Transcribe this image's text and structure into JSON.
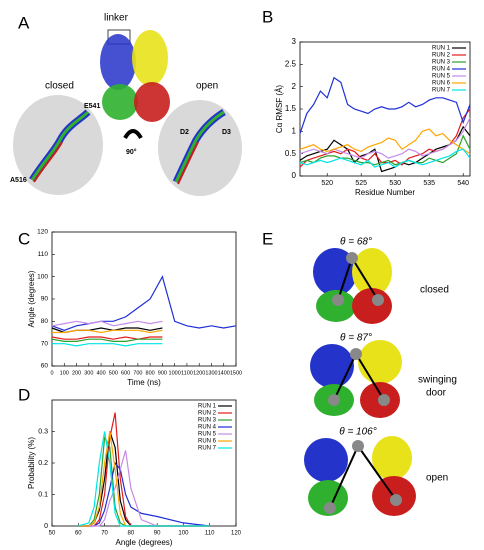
{
  "panels": {
    "a": "A",
    "b": "B",
    "c": "C",
    "d": "D",
    "e": "E"
  },
  "panel_a": {
    "linker": "linker",
    "closed": "closed",
    "open": "open",
    "e541": "E541",
    "a516": "A516",
    "rotation": "90°",
    "d2": "D2",
    "d3": "D3"
  },
  "panel_e": {
    "states": [
      {
        "angle": "θ = 68°",
        "label": [
          "closed"
        ]
      },
      {
        "angle": "θ = 87°",
        "label": [
          "swinging",
          "door"
        ]
      },
      {
        "angle": "θ = 106°",
        "label": [
          "open"
        ]
      }
    ]
  },
  "chart_data": [
    {
      "type": "line",
      "xlabel": "Residue Number",
      "ylabel": "Cα RMSF (Å)",
      "legend": "upper right",
      "x": [
        516,
        517,
        518,
        519,
        520,
        521,
        522,
        523,
        524,
        525,
        526,
        527,
        528,
        529,
        530,
        531,
        532,
        533,
        534,
        535,
        536,
        537,
        538,
        539,
        540,
        541
      ],
      "xlim": [
        516,
        541
      ],
      "xticks": [
        520,
        525,
        530,
        535,
        540
      ],
      "ylim": [
        0,
        3
      ],
      "yticks": [
        0,
        0.5,
        1,
        1.5,
        2,
        2.5,
        3
      ],
      "series": [
        {
          "name": "RUN 1",
          "color": "#000000",
          "values": [
            0.35,
            0.45,
            0.5,
            0.55,
            0.6,
            0.8,
            0.7,
            0.6,
            0.3,
            0.45,
            0.5,
            0.6,
            0.1,
            0.15,
            0.2,
            0.3,
            0.25,
            0.3,
            0.4,
            0.5,
            0.6,
            0.65,
            0.7,
            0.8,
            1.1,
            0.9
          ]
        },
        {
          "name": "RUN 2",
          "color": "#e41a1c",
          "values": [
            0.2,
            0.35,
            0.4,
            0.45,
            0.5,
            0.55,
            0.5,
            0.6,
            0.55,
            0.4,
            0.35,
            0.5,
            0.3,
            0.3,
            0.35,
            0.25,
            0.4,
            0.45,
            0.5,
            0.6,
            0.55,
            0.6,
            0.7,
            0.9,
            1.3,
            1.5
          ]
        },
        {
          "name": "RUN 3",
          "color": "#2ca02c",
          "values": [
            0.3,
            0.35,
            0.3,
            0.4,
            0.45,
            0.45,
            0.4,
            0.4,
            0.35,
            0.3,
            0.3,
            0.25,
            0.3,
            0.35,
            0.25,
            0.3,
            0.35,
            0.3,
            0.3,
            0.4,
            0.35,
            0.3,
            0.4,
            0.5,
            0.9,
            0.6
          ]
        },
        {
          "name": "RUN 4",
          "color": "#1f2fd6",
          "values": [
            0.95,
            1.4,
            1.6,
            1.9,
            1.75,
            2.2,
            2.1,
            1.6,
            1.5,
            1.45,
            1.4,
            1.5,
            1.55,
            1.5,
            1.5,
            1.55,
            1.65,
            1.55,
            1.6,
            1.7,
            1.75,
            1.75,
            1.7,
            1.65,
            1.2,
            1.6
          ]
        },
        {
          "name": "RUN 5",
          "color": "#c58be6",
          "values": [
            0.5,
            0.55,
            0.6,
            0.55,
            0.5,
            0.6,
            0.55,
            0.5,
            0.45,
            0.4,
            0.5,
            0.55,
            0.5,
            0.4,
            0.45,
            0.5,
            0.6,
            0.55,
            0.45,
            0.5,
            0.55,
            0.6,
            0.7,
            0.8,
            1.0,
            1.3
          ]
        },
        {
          "name": "RUN 6",
          "color": "#ffa500",
          "values": [
            0.6,
            0.65,
            0.7,
            0.6,
            0.55,
            0.6,
            0.65,
            0.7,
            0.6,
            0.55,
            0.65,
            0.7,
            0.75,
            0.85,
            0.8,
            0.6,
            0.7,
            0.8,
            1.0,
            1.05,
            0.9,
            0.95,
            0.8,
            0.7,
            0.6,
            0.5
          ]
        },
        {
          "name": "RUN 7",
          "color": "#00e5e5",
          "values": [
            0.3,
            0.25,
            0.3,
            0.35,
            0.3,
            0.35,
            0.4,
            0.35,
            0.3,
            0.25,
            0.35,
            0.2,
            0.25,
            0.3,
            0.2,
            0.3,
            0.35,
            0.3,
            0.25,
            0.3,
            0.35,
            0.4,
            0.45,
            0.55,
            0.6,
            0.4
          ]
        }
      ]
    },
    {
      "type": "line",
      "xlabel": "Time (ns)",
      "ylabel": "Angle (degrees)",
      "x": [
        0,
        100,
        200,
        300,
        400,
        500,
        600,
        700,
        800,
        900,
        1000,
        1100,
        1200,
        1300,
        1400,
        1500
      ],
      "xlim": [
        0,
        1500
      ],
      "xticks": [
        0,
        100,
        200,
        300,
        400,
        500,
        600,
        700,
        800,
        900,
        1000,
        1100,
        1200,
        1300,
        1400,
        1500
      ],
      "ylim": [
        60,
        120
      ],
      "yticks": [
        60,
        70,
        80,
        90,
        100,
        110,
        120
      ],
      "series": [
        {
          "name": "RUN 4",
          "color": "#1f2fd6",
          "values": [
            78,
            76,
            78,
            79,
            80,
            80,
            82,
            86,
            90,
            100,
            80,
            78,
            77,
            78,
            77,
            78
          ]
        },
        {
          "name": "RUN 5",
          "color": "#c58be6",
          "values": [
            78,
            79,
            80,
            79,
            80,
            78,
            79,
            80,
            79,
            80,
            null,
            null,
            null,
            null,
            null,
            null
          ]
        },
        {
          "name": "RUN 1",
          "color": "#000000",
          "values": [
            77,
            75,
            76,
            76,
            77,
            76,
            77,
            77,
            76,
            77,
            null,
            null,
            null,
            null,
            null,
            null
          ]
        },
        {
          "name": "RUN 6",
          "color": "#ffa500",
          "values": [
            75,
            75,
            76,
            76,
            75,
            76,
            76,
            76,
            75,
            76,
            null,
            null,
            null,
            null,
            null,
            null
          ]
        },
        {
          "name": "RUN 2",
          "color": "#e41a1c",
          "values": [
            73,
            72,
            72,
            73,
            73,
            72,
            73,
            72,
            73,
            73,
            null,
            null,
            null,
            null,
            null,
            null
          ]
        },
        {
          "name": "RUN 3",
          "color": "#2ca02c",
          "values": [
            72,
            71,
            71,
            72,
            72,
            71,
            71,
            72,
            72,
            72,
            null,
            null,
            null,
            null,
            null,
            null
          ]
        },
        {
          "name": "RUN 7",
          "color": "#00e5e5",
          "values": [
            70,
            70,
            69,
            70,
            70,
            70,
            69,
            70,
            70,
            70,
            null,
            null,
            null,
            null,
            null,
            null
          ]
        }
      ]
    },
    {
      "type": "line",
      "xlabel": "Angle (degrees)",
      "ylabel": "Probability (%)",
      "legend": "upper right",
      "x": [
        60,
        64,
        66,
        68,
        70,
        72,
        74,
        76,
        78,
        80,
        84,
        90,
        100,
        110
      ],
      "xlim": [
        50,
        120
      ],
      "xticks": [
        50,
        60,
        70,
        80,
        90,
        100,
        110,
        120
      ],
      "ylim": [
        0,
        0.4
      ],
      "yticks": [
        0,
        0.1,
        0.2,
        0.3
      ],
      "series": [
        {
          "name": "RUN 1",
          "color": "#000000",
          "values": [
            0,
            0,
            0.01,
            0.05,
            0.15,
            0.3,
            0.25,
            0.08,
            0.02,
            0,
            0,
            0,
            0,
            0
          ]
        },
        {
          "name": "RUN 2",
          "color": "#e41a1c",
          "values": [
            0,
            0,
            0,
            0.02,
            0.1,
            0.28,
            0.36,
            0.15,
            0.03,
            0,
            0,
            0,
            0,
            0
          ]
        },
        {
          "name": "RUN 3",
          "color": "#2ca02c",
          "values": [
            0,
            0,
            0.02,
            0.1,
            0.28,
            0.25,
            0.06,
            0.01,
            0,
            0,
            0,
            0,
            0,
            0
          ]
        },
        {
          "name": "RUN 4",
          "color": "#1f2fd6",
          "values": [
            0,
            0,
            0,
            0.01,
            0.05,
            0.12,
            0.2,
            0.18,
            0.1,
            0.06,
            0.04,
            0.03,
            0.01,
            0
          ]
        },
        {
          "name": "RUN 5",
          "color": "#c58be6",
          "values": [
            0,
            0,
            0,
            0,
            0.02,
            0.08,
            0.12,
            0.18,
            0.24,
            0.12,
            0.02,
            0,
            0,
            0
          ]
        },
        {
          "name": "RUN 6",
          "color": "#ffa500",
          "values": [
            0,
            0,
            0.01,
            0.06,
            0.2,
            0.3,
            0.18,
            0.04,
            0,
            0,
            0,
            0,
            0,
            0
          ]
        },
        {
          "name": "RUN 7",
          "color": "#00e5e5",
          "values": [
            0,
            0.01,
            0.06,
            0.2,
            0.3,
            0.2,
            0.04,
            0,
            0,
            0,
            0,
            0,
            0,
            0
          ]
        }
      ]
    }
  ]
}
